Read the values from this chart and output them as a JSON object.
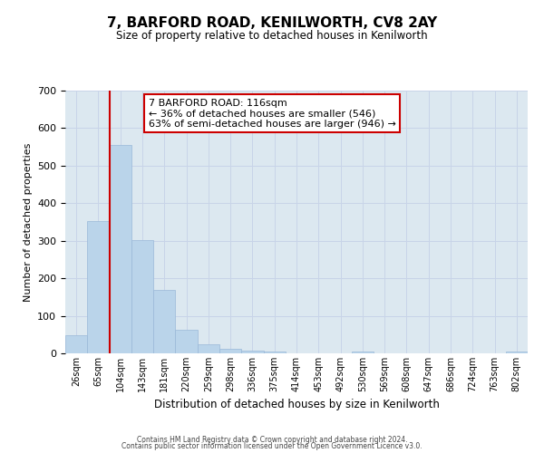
{
  "title": "7, BARFORD ROAD, KENILWORTH, CV8 2AY",
  "subtitle": "Size of property relative to detached houses in Kenilworth",
  "bar_values": [
    48,
    352,
    554,
    302,
    168,
    62,
    25,
    12,
    8,
    5,
    0,
    0,
    0,
    5,
    0,
    0,
    0,
    0,
    0,
    0,
    5
  ],
  "bin_labels": [
    "26sqm",
    "65sqm",
    "104sqm",
    "143sqm",
    "181sqm",
    "220sqm",
    "259sqm",
    "298sqm",
    "336sqm",
    "375sqm",
    "414sqm",
    "453sqm",
    "492sqm",
    "530sqm",
    "569sqm",
    "608sqm",
    "647sqm",
    "686sqm",
    "724sqm",
    "763sqm",
    "802sqm"
  ],
  "bar_color": "#bad4ea",
  "bar_edge_color": "#9ab8d8",
  "bar_width": 1.0,
  "vline_x": 2.0,
  "vline_color": "#cc0000",
  "xlabel": "Distribution of detached houses by size in Kenilworth",
  "ylabel": "Number of detached properties",
  "ylim": [
    0,
    700
  ],
  "yticks": [
    0,
    100,
    200,
    300,
    400,
    500,
    600,
    700
  ],
  "annotation_title": "7 BARFORD ROAD: 116sqm",
  "annotation_line1": "← 36% of detached houses are smaller (546)",
  "annotation_line2": "63% of semi-detached houses are larger (946) →",
  "annotation_box_color": "#ffffff",
  "annotation_box_edge": "#cc0000",
  "grid_color": "#c8d4e8",
  "background_color": "#dce8f0",
  "footer1": "Contains HM Land Registry data © Crown copyright and database right 2024.",
  "footer2": "Contains public sector information licensed under the Open Government Licence v3.0."
}
